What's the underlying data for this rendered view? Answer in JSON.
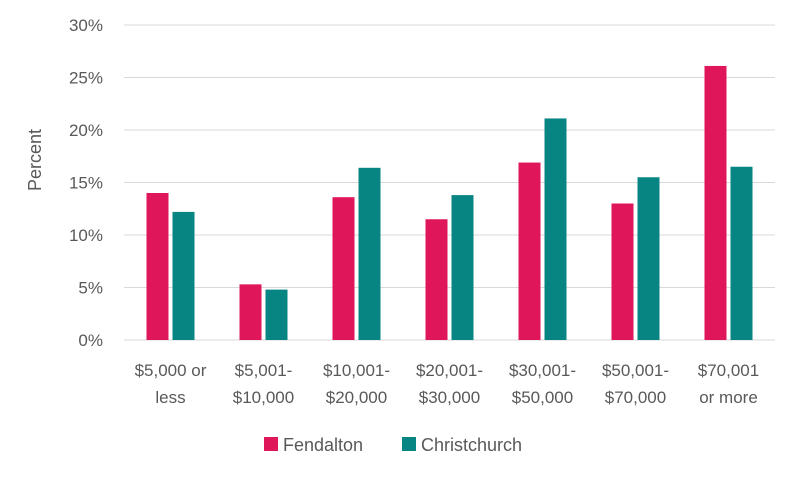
{
  "chart_data": {
    "type": "bar",
    "title": "",
    "xlabel": "",
    "ylabel": "Percent",
    "ylim": [
      0,
      30
    ],
    "yticks": [
      0,
      5,
      10,
      15,
      20,
      25,
      30
    ],
    "ytick_labels": [
      "0%",
      "5%",
      "10%",
      "15%",
      "20%",
      "25%",
      "30%"
    ],
    "grid": true,
    "legend_position": "bottom",
    "categories": [
      [
        "$5,000 or",
        "less"
      ],
      [
        "$5,001-",
        "$10,000"
      ],
      [
        "$10,001-",
        "$20,000"
      ],
      [
        "$20,001-",
        "$30,000"
      ],
      [
        "$30,001-",
        "$50,000"
      ],
      [
        "$50,001-",
        "$70,000"
      ],
      [
        "$70,001",
        "or more"
      ]
    ],
    "series": [
      {
        "name": "Fendalton",
        "color": "#e0165b",
        "values": [
          14.0,
          5.3,
          13.6,
          11.5,
          16.9,
          13.0,
          26.1
        ]
      },
      {
        "name": "Christchurch",
        "color": "#078583",
        "values": [
          12.2,
          4.8,
          16.4,
          13.8,
          21.1,
          15.5,
          16.5
        ]
      }
    ]
  }
}
